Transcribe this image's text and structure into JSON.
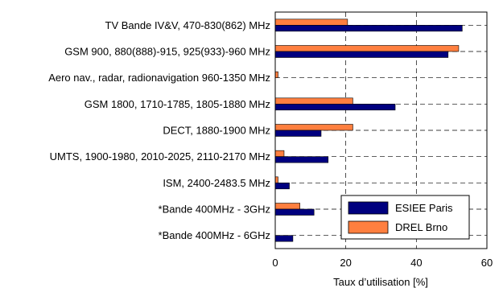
{
  "chart_data": {
    "type": "bar",
    "orientation": "horizontal",
    "title": "",
    "xlabel": "Taux d’utilisation [%]",
    "ylabel": "",
    "xlim": [
      0,
      60
    ],
    "xticks": [
      "0",
      "20",
      "40",
      "60"
    ],
    "grid": "dashed",
    "legend_position": "bottom-right",
    "categories": [
      "TV Bande IV&V, 470-830(862) MHz",
      "GSM 900, 880(888)-915, 925(933)-960 MHz",
      "Aero nav., radar, radionavigation 960-1350 MHz",
      "GSM 1800, 1710-1785, 1805-1880 MHz",
      "DECT, 1880-1900 MHz",
      "UMTS, 1900-1980, 2010-2025, 2110-2170 MHz",
      "ISM, 2400-2483.5 MHz",
      "*Bande 400MHz - 3GHz",
      "*Bande 400MHz - 6GHz"
    ],
    "series": [
      {
        "name": "ESIEE Paris",
        "color": "#00007f",
        "values": [
          53,
          49,
          0,
          34,
          13,
          15,
          4,
          11,
          5
        ]
      },
      {
        "name": "DREL Brno",
        "color": "#ff7f3f",
        "values": [
          20.5,
          52,
          0.8,
          22,
          22,
          2.5,
          0.8,
          7,
          0
        ]
      }
    ]
  }
}
